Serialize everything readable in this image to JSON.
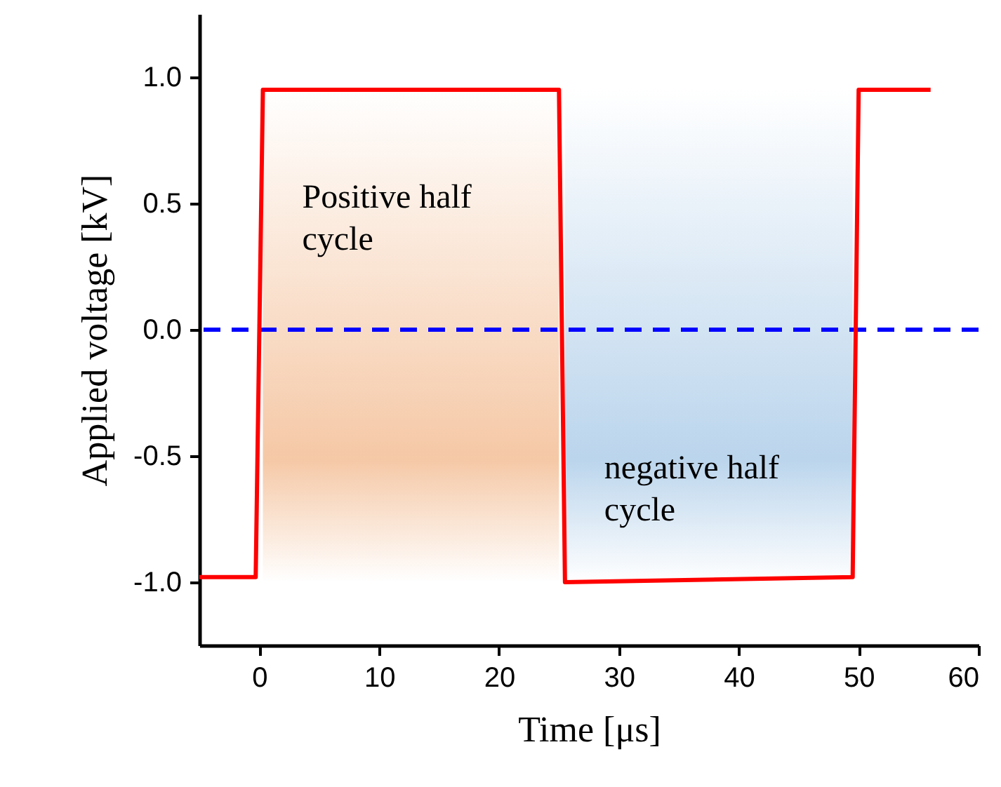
{
  "chart_data": {
    "type": "line",
    "xlabel": "Time [μs]",
    "ylabel": "Applied voltage [kV]",
    "x": [
      -5,
      -0.3,
      0.3,
      25,
      25.5,
      49.5,
      50,
      56
    ],
    "series": [
      {
        "color": "#ff0000",
        "values": [
          -0.98,
          -0.98,
          0.95,
          0.95,
          -1.0,
          -0.98,
          0.95,
          0.95
        ]
      }
    ],
    "xlim": [
      -5,
      60
    ],
    "xticks": [
      0,
      10,
      20,
      30,
      40,
      50,
      60
    ],
    "ylim": [
      -1.25,
      1.25
    ],
    "yticks": [
      {
        "value": -1,
        "label": "-1.0"
      },
      {
        "value": -0.5,
        "label": "-0.5"
      },
      {
        "value": 0,
        "label": "0.0"
      },
      {
        "value": 0.5,
        "label": "0.5"
      },
      {
        "value": 1,
        "label": "1.0"
      }
    ],
    "ref_lines": [
      {
        "axis": "y",
        "value": 0,
        "color": "#0000ff",
        "line_style": "dashed"
      }
    ],
    "bands": [
      {
        "axis": "x",
        "from": 0.3,
        "to": 25,
        "label": "Positive half\ncycle",
        "color": "#f4c29c"
      },
      {
        "axis": "x",
        "from": 25.5,
        "to": 49.5,
        "label": "negative half\ncycle",
        "color": "#b3d0ea"
      }
    ],
    "grid": false,
    "line_style": "solid",
    "marker": "none"
  }
}
